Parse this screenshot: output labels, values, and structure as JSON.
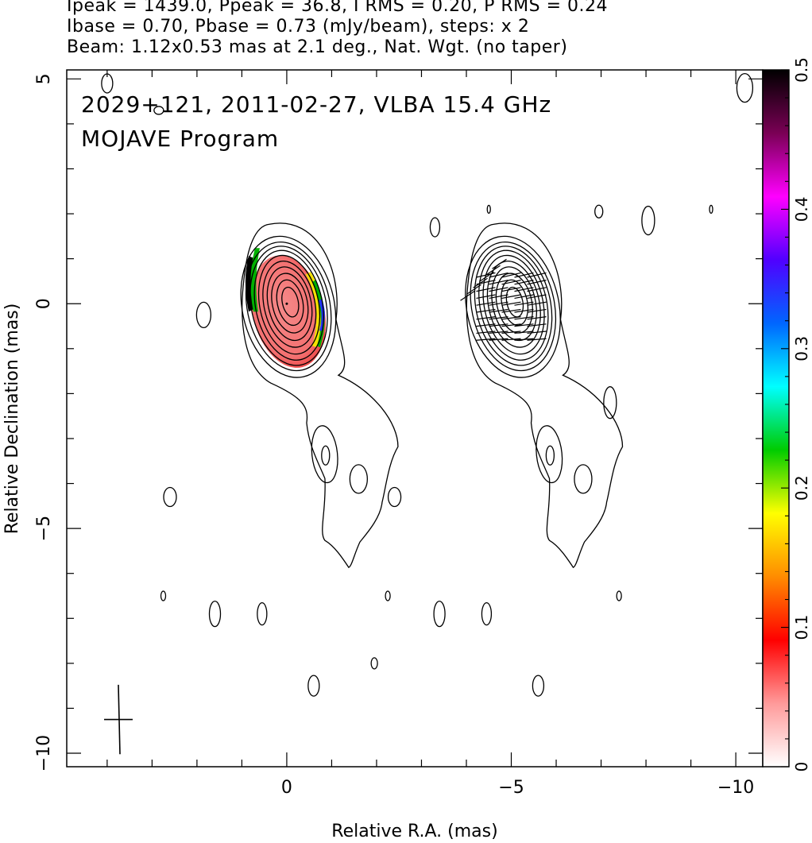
{
  "header": {
    "line1": "Ipeak = 1439.0, Ppeak = 36.8, I RMS = 0.20, P RMS = 0.24",
    "line2": "Ibase = 0.70, Pbase = 0.73 (mJy/beam), steps: x 2",
    "line3": "Beam: 1.12x0.53 mas at 2.1 deg., Nat. Wgt. (no taper)"
  },
  "chart_data": {
    "type": "contour",
    "title": "2029+121, 2011-02-27, VLBA 15.4 GHz",
    "subtitle": "MOJAVE Program",
    "xlabel": "Relative R.A. (mas)",
    "ylabel": "Relative Declination (mas)",
    "xlim": [
      4.9,
      -10.6
    ],
    "ylim": [
      -10.3,
      5.2
    ],
    "x_ticks": [
      0,
      -5,
      -10
    ],
    "x_tick_labels": [
      "0",
      "−5",
      "−10"
    ],
    "y_ticks": [
      5,
      0,
      -5,
      -10
    ],
    "y_tick_labels": [
      "5",
      "0",
      "−5",
      "−10"
    ],
    "colorbar": {
      "range": [
        0,
        0.5
      ],
      "ticks": [
        0,
        0.1,
        0.2,
        0.3,
        0.4,
        0.5
      ],
      "tick_labels": [
        "0",
        "0.1",
        "0.2",
        "0.3",
        "0.4",
        "0.5"
      ],
      "colors": [
        "#ffffff",
        "#ff9a9a",
        "#ff0000",
        "#ff8c00",
        "#ffff00",
        "#00cc00",
        "#00ffff",
        "#0066ff",
        "#5000ff",
        "#ff00ff",
        "#7a0055",
        "#000000"
      ]
    },
    "core": {
      "x": 0,
      "y": 0,
      "peak": 1439.0
    },
    "components": [
      {
        "x": -0.9,
        "y": -3.2,
        "label": ""
      },
      {
        "x": -1.6,
        "y": -3.9,
        "label": ""
      }
    ],
    "right_panel_offset_x": -5,
    "beam": {
      "major": 1.12,
      "minor": 0.53,
      "pa_deg": 2.1
    },
    "grid": false
  }
}
